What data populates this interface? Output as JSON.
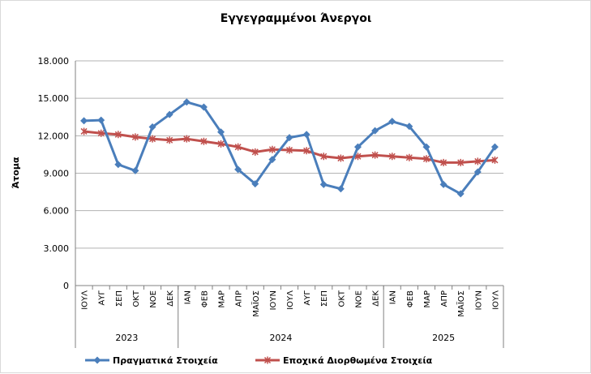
{
  "chart_data": {
    "type": "line",
    "title": "Εγγεγραμμένοι Άνεργοι",
    "ylabel": "Άτομα",
    "xlabel": "",
    "ylim": [
      0,
      18000
    ],
    "yticks": [
      0,
      3000,
      6000,
      9000,
      12000,
      15000,
      18000
    ],
    "ytick_labels": [
      "0",
      "3.000",
      "6.000",
      "9.000",
      "12.000",
      "15.000",
      "18.000"
    ],
    "grid": true,
    "legend_position": "bottom",
    "categories": [
      "ΙΟΥΛ",
      "ΑΥΓ",
      "ΣΕΠ",
      "ΟΚΤ",
      "ΝΟΕ",
      "ΔΕΚ",
      "ΙΑΝ",
      "ΦΕΒ",
      "ΜΑΡ",
      "ΑΠΡ",
      "ΜΑΪΟΣ",
      "ΙΟΥΝ",
      "ΙΟΥΛ",
      "ΑΥΓ",
      "ΣΕΠ",
      "ΟΚΤ",
      "ΝΟΕ",
      "ΔΕΚ",
      "ΙΑΝ",
      "ΦΕΒ",
      "ΜΑΡ",
      "ΑΠΡ",
      "ΜΑΪΟΣ",
      "ΙΟΥΝ",
      "ΙΟΥΛ"
    ],
    "year_groups": [
      {
        "label": "2023",
        "start": 0,
        "end": 5
      },
      {
        "label": "2024",
        "start": 6,
        "end": 17
      },
      {
        "label": "2025",
        "start": 18,
        "end": 24
      }
    ],
    "series": [
      {
        "name": "Πραγματικά Στοιχεία",
        "color": "#4a7ebb",
        "marker": "diamond",
        "values": [
          13200,
          13250,
          9700,
          9200,
          12700,
          13700,
          14700,
          14300,
          12300,
          9300,
          8150,
          10100,
          11850,
          12100,
          8100,
          7750,
          11100,
          12400,
          13150,
          12750,
          11100,
          8100,
          7350,
          9100,
          11100
        ]
      },
      {
        "name": "Εποχικά Διορθωμένα Στοιχεία",
        "color": "#c0504d",
        "marker": "x",
        "values": [
          12350,
          12200,
          12100,
          11900,
          11750,
          11650,
          11750,
          11550,
          11350,
          11100,
          10700,
          10900,
          10850,
          10800,
          10350,
          10200,
          10350,
          10450,
          10350,
          10250,
          10150,
          9850,
          9850,
          9950,
          10050
        ]
      }
    ]
  }
}
